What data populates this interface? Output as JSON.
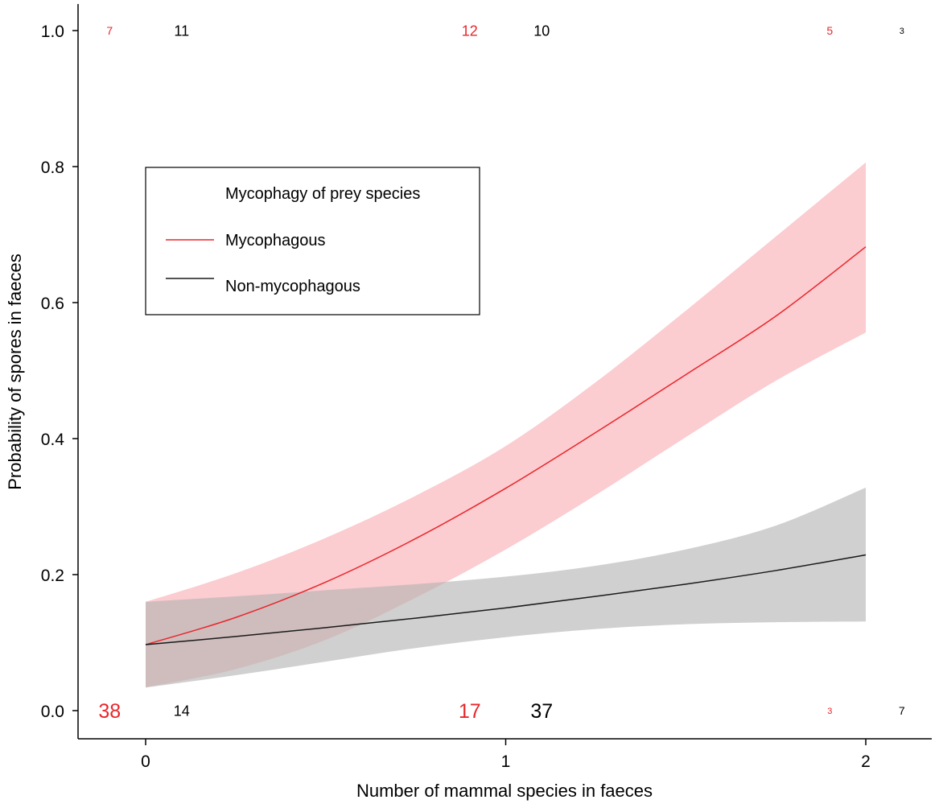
{
  "chart_data": {
    "type": "line",
    "title": "",
    "xlabel": "Number of mammal species in faeces",
    "ylabel": "Probability of spores in faeces",
    "xlim": [
      -0.19,
      2.19
    ],
    "ylim": [
      -0.04,
      1.04
    ],
    "x_ticks": [
      0,
      1,
      2
    ],
    "x_tick_labels": [
      "0",
      "1",
      "2"
    ],
    "y_ticks": [
      0.0,
      0.2,
      0.4,
      0.6,
      0.8,
      1.0
    ],
    "y_tick_labels": [
      "0.0",
      "0.2",
      "0.4",
      "0.6",
      "0.8",
      "1.0"
    ],
    "grid": false,
    "legend": {
      "title": "Mycophagy of prey species",
      "position": "top-left",
      "entries": [
        "Mycophagous",
        "Non-mycophagous"
      ]
    },
    "series": [
      {
        "name": "Mycophagous",
        "color": "#e8262b",
        "band_color": "#f9b4b9",
        "x": [
          0,
          0.25,
          0.5,
          0.75,
          1.0,
          1.25,
          1.5,
          1.75,
          2.0
        ],
        "values": [
          0.097,
          0.137,
          0.189,
          0.253,
          0.327,
          0.409,
          0.494,
          0.58,
          0.682
        ],
        "lower": [
          0.034,
          0.061,
          0.104,
          0.166,
          0.237,
          0.317,
          0.402,
          0.485,
          0.556
        ],
        "upper": [
          0.16,
          0.202,
          0.254,
          0.316,
          0.389,
          0.483,
          0.588,
          0.697,
          0.806
        ]
      },
      {
        "name": "Non-mycophagous",
        "color": "#1a1a1a",
        "band_color": "#b3b3b3",
        "x": [
          0,
          0.25,
          0.5,
          0.75,
          1.0,
          1.25,
          1.5,
          1.75,
          2.0
        ],
        "values": [
          0.097,
          0.109,
          0.122,
          0.136,
          0.151,
          0.168,
          0.186,
          0.206,
          0.229
        ],
        "lower": [
          0.034,
          0.052,
          0.072,
          0.092,
          0.108,
          0.12,
          0.127,
          0.13,
          0.131
        ],
        "upper": [
          0.16,
          0.168,
          0.177,
          0.186,
          0.197,
          0.213,
          0.237,
          0.272,
          0.328
        ]
      }
    ],
    "annotations": [
      {
        "text": "7",
        "x": -0.1,
        "y": 1.0,
        "color": "#e8262b",
        "size": "small"
      },
      {
        "text": "11",
        "x": 0.1,
        "y": 1.0,
        "color": "#000000",
        "size": "normal"
      },
      {
        "text": "12",
        "x": 0.9,
        "y": 1.0,
        "color": "#e8262b",
        "size": "normal"
      },
      {
        "text": "10",
        "x": 1.1,
        "y": 1.0,
        "color": "#000000",
        "size": "normal"
      },
      {
        "text": "5",
        "x": 1.9,
        "y": 1.0,
        "color": "#e8262b",
        "size": "small"
      },
      {
        "text": "3",
        "x": 2.1,
        "y": 1.0,
        "color": "#000000",
        "size": "tiny"
      },
      {
        "text": "38",
        "x": -0.1,
        "y": 0.0,
        "color": "#e8262b",
        "size": "large"
      },
      {
        "text": "14",
        "x": 0.1,
        "y": 0.0,
        "color": "#000000",
        "size": "normal"
      },
      {
        "text": "17",
        "x": 0.9,
        "y": 0.0,
        "color": "#e8262b",
        "size": "large"
      },
      {
        "text": "37",
        "x": 1.1,
        "y": 0.0,
        "color": "#000000",
        "size": "large"
      },
      {
        "text": "3",
        "x": 1.9,
        "y": 0.0,
        "color": "#e8262b",
        "size": "tiny"
      },
      {
        "text": "7",
        "x": 2.1,
        "y": 0.0,
        "color": "#000000",
        "size": "small"
      }
    ]
  }
}
